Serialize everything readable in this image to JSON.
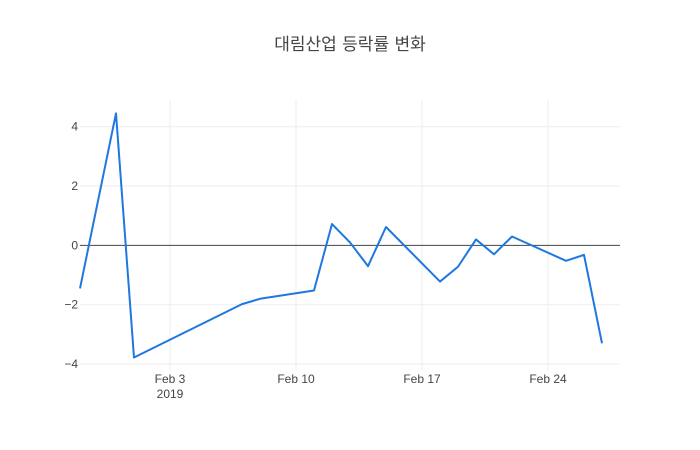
{
  "chart_data": {
    "type": "line",
    "title": "대림산업 등락률 변화",
    "xlabel": "",
    "ylabel": "",
    "x_range": [
      "2019-01-29",
      "2019-02-28"
    ],
    "ylim": [
      -4.2,
      4.9
    ],
    "y_ticks": [
      -4,
      -2,
      0,
      2,
      4
    ],
    "x_ticks": [
      {
        "date": "2019-02-03",
        "label": "Feb 3",
        "sublabel": "2019"
      },
      {
        "date": "2019-02-10",
        "label": "Feb 10",
        "sublabel": ""
      },
      {
        "date": "2019-02-17",
        "label": "Feb 17",
        "sublabel": ""
      },
      {
        "date": "2019-02-24",
        "label": "Feb 24",
        "sublabel": ""
      }
    ],
    "grid": true,
    "zero_line": true,
    "series": [
      {
        "color": "#1f77e0",
        "points": [
          {
            "x": "2019-01-29",
            "y": -1.45
          },
          {
            "x": "2019-01-31",
            "y": 4.45
          },
          {
            "x": "2019-02-01",
            "y": -3.78
          },
          {
            "x": "2019-02-07",
            "y": -1.98
          },
          {
            "x": "2019-02-08",
            "y": -1.8
          },
          {
            "x": "2019-02-11",
            "y": -1.52
          },
          {
            "x": "2019-02-12",
            "y": 0.72
          },
          {
            "x": "2019-02-13",
            "y": 0.1
          },
          {
            "x": "2019-02-14",
            "y": -0.7
          },
          {
            "x": "2019-02-15",
            "y": 0.62
          },
          {
            "x": "2019-02-18",
            "y": -1.22
          },
          {
            "x": "2019-02-19",
            "y": -0.72
          },
          {
            "x": "2019-02-20",
            "y": 0.2
          },
          {
            "x": "2019-02-21",
            "y": -0.3
          },
          {
            "x": "2019-02-22",
            "y": 0.3
          },
          {
            "x": "2019-02-25",
            "y": -0.52
          },
          {
            "x": "2019-02-26",
            "y": -0.32
          },
          {
            "x": "2019-02-27",
            "y": -3.3
          }
        ]
      }
    ]
  }
}
